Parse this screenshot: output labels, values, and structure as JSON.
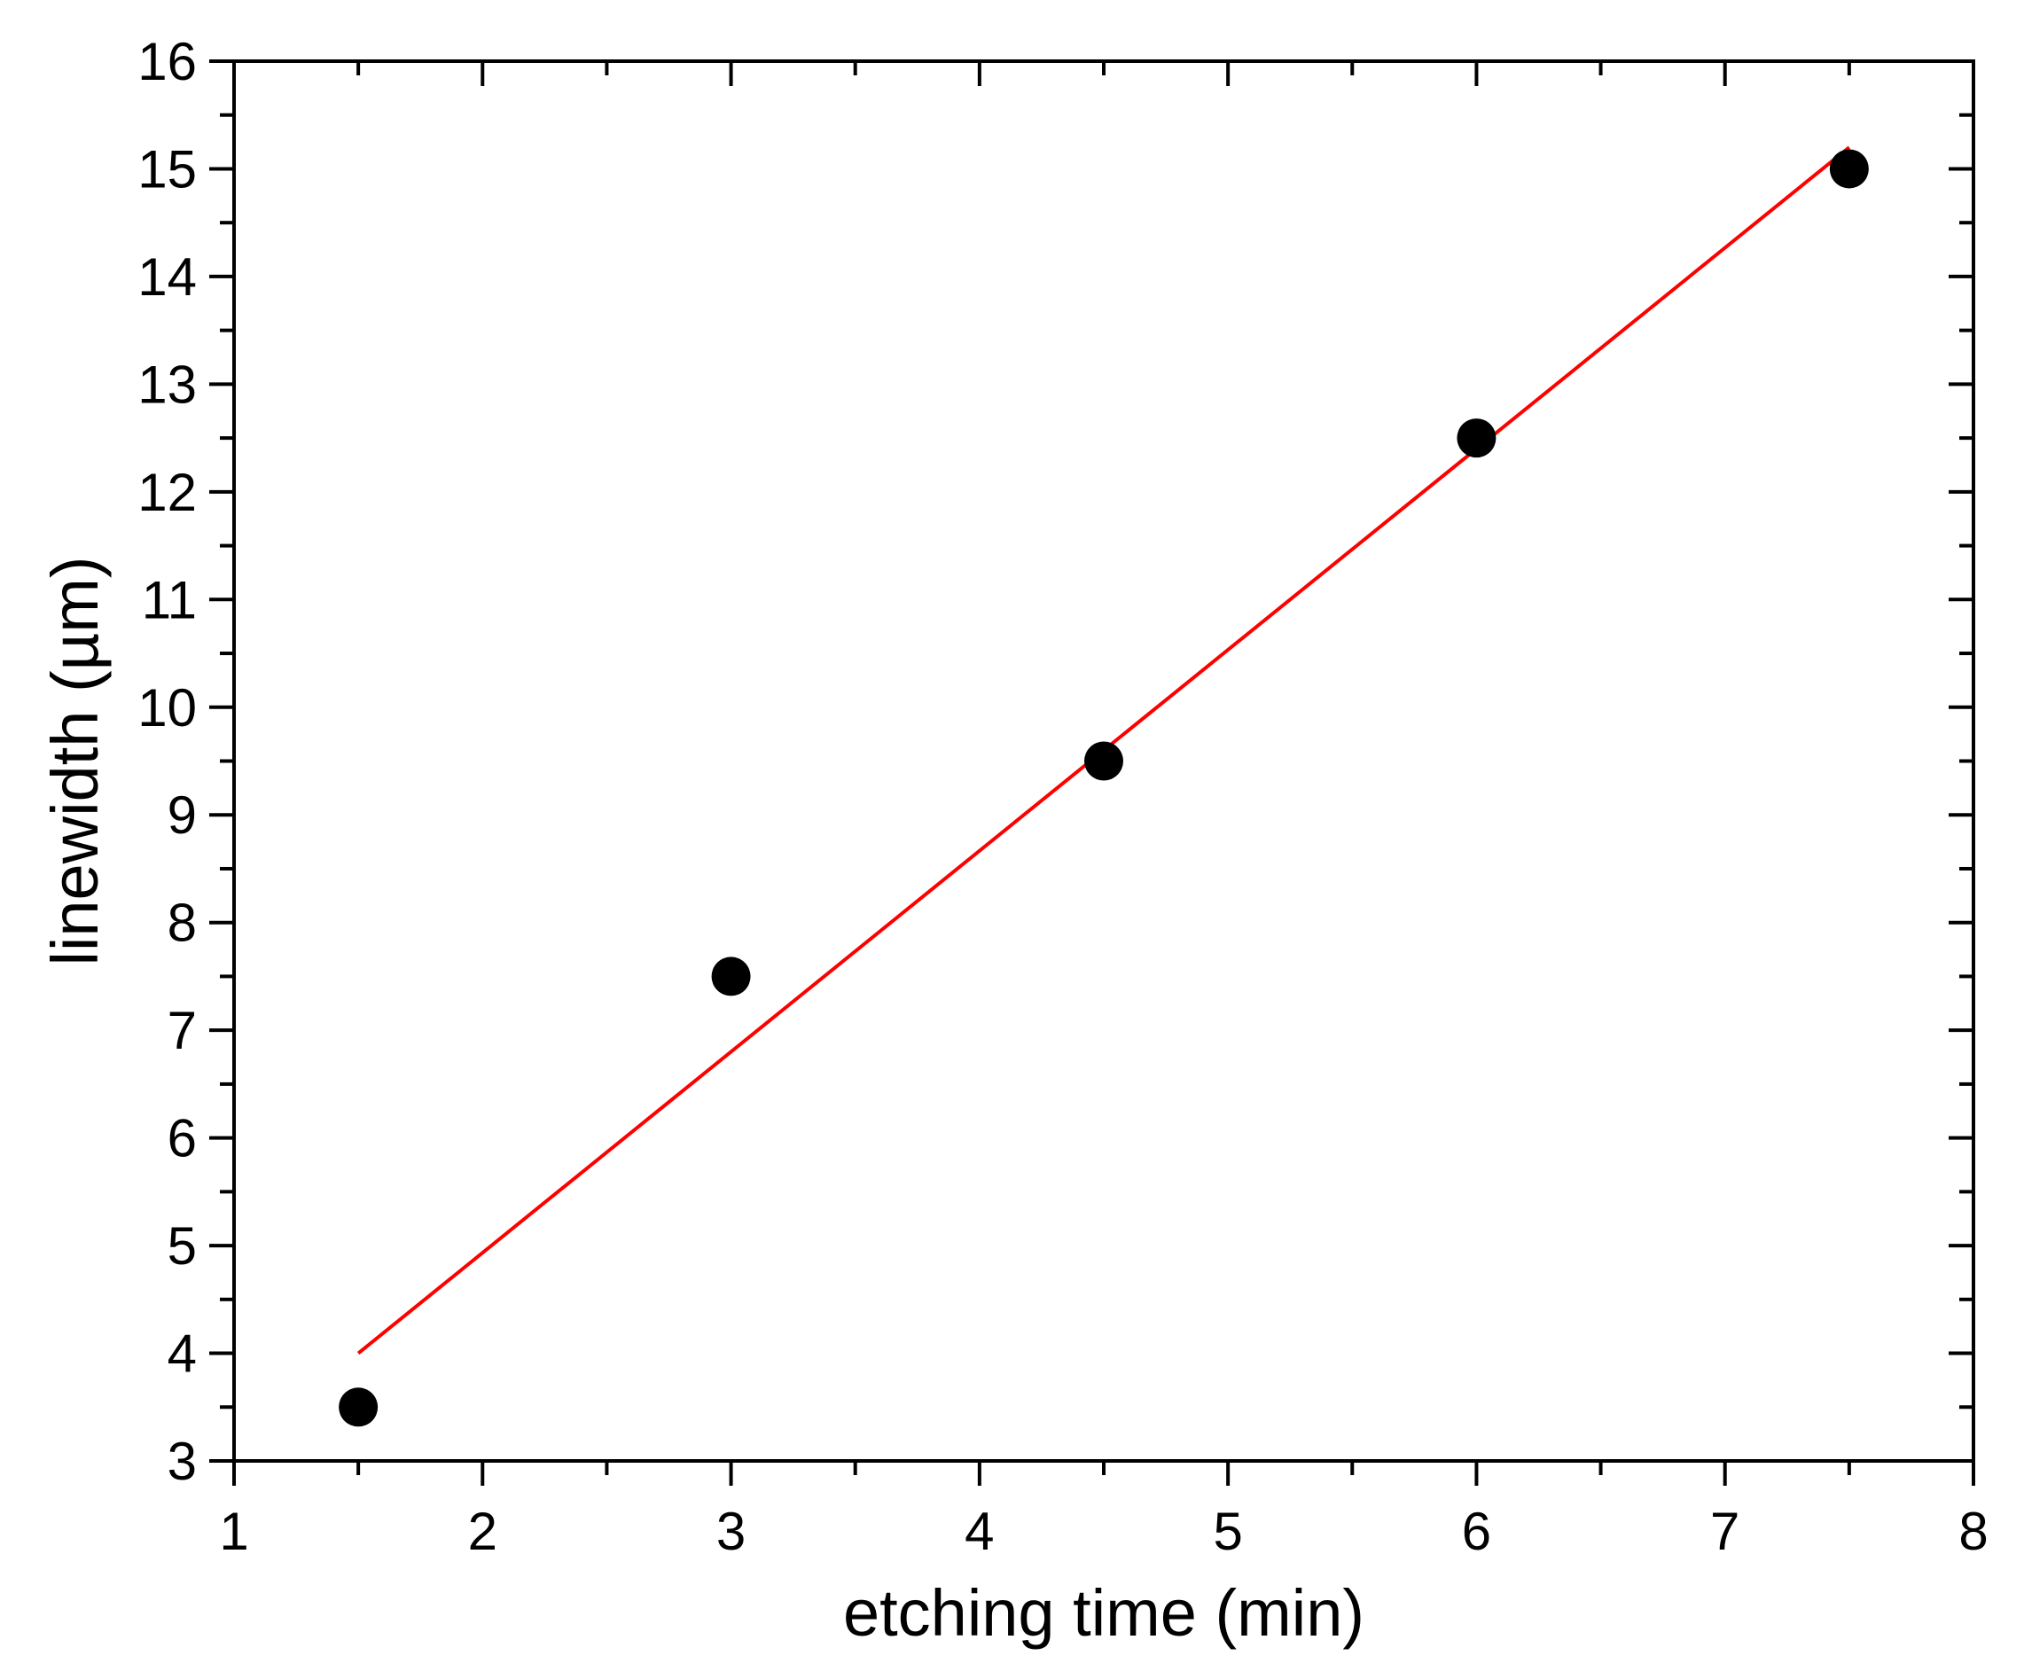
{
  "chart_data": {
    "type": "scatter",
    "xlabel": "etching time (min)",
    "ylabel": "linewidth (µm)",
    "xlim": [
      1,
      8
    ],
    "ylim": [
      3,
      16
    ],
    "x_major_ticks": [
      1,
      2,
      3,
      4,
      5,
      6,
      7,
      8
    ],
    "y_major_ticks": [
      3,
      4,
      5,
      6,
      7,
      8,
      9,
      10,
      11,
      12,
      13,
      14,
      15,
      16
    ],
    "x_tick_labels": [
      "1",
      "2",
      "3",
      "4",
      "5",
      "6",
      "7",
      "8"
    ],
    "y_tick_labels": [
      "3",
      "4",
      "5",
      "6",
      "7",
      "8",
      "9",
      "10",
      "11",
      "12",
      "13",
      "14",
      "15",
      "16"
    ],
    "grid": false,
    "series": [
      {
        "type": "scatter",
        "color": "#000000",
        "marker": "filled-circle",
        "x": [
          1.5,
          3.0,
          4.5,
          6.0,
          7.5
        ],
        "y": [
          3.5,
          7.5,
          9.5,
          12.5,
          15.0
        ]
      },
      {
        "type": "line",
        "color": "#ff0000",
        "x": [
          1.5,
          7.5
        ],
        "y": [
          4.0,
          15.2
        ]
      }
    ]
  }
}
